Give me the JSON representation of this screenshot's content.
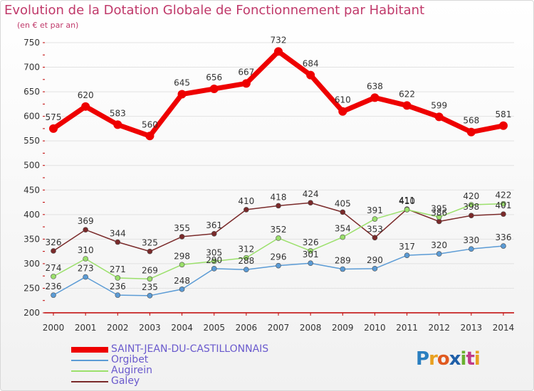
{
  "header": {
    "title": "Evolution de la Dotation Globale de Fonctionnement par Habitant",
    "subtitle": "(en € et par an)"
  },
  "logo": {
    "text": "Proxiti"
  },
  "colors": {
    "title": "#c0396a",
    "axis": "#c00000",
    "legend_text": "#6a5acd"
  },
  "chart_data": {
    "type": "line",
    "x": [
      "2000",
      "2001",
      "2002",
      "2003",
      "2004",
      "2005",
      "2006",
      "2007",
      "2008",
      "2009",
      "2010",
      "2011",
      "2012",
      "2013",
      "2014"
    ],
    "ylim": [
      200,
      750
    ],
    "yticks": [
      200,
      250,
      300,
      350,
      400,
      450,
      500,
      550,
      600,
      650,
      700,
      750
    ],
    "grid": true,
    "legend_position": "bottom-left",
    "series": [
      {
        "name": "SAINT-JEAN-DU-CASTILLONNAIS",
        "color": "#ee0000",
        "values": [
          575,
          620,
          583,
          560,
          645,
          656,
          667,
          732,
          684,
          610,
          638,
          622,
          599,
          568,
          581
        ]
      },
      {
        "name": "Orgibet",
        "color": "#5b9bd5",
        "values": [
          236,
          273,
          236,
          235,
          248,
          290,
          288,
          296,
          301,
          289,
          290,
          317,
          320,
          330,
          336
        ]
      },
      {
        "name": "Augirein",
        "color": "#9be06b",
        "values": [
          274,
          310,
          271,
          269,
          298,
          305,
          312,
          352,
          326,
          354,
          391,
          410,
          395,
          420,
          422
        ]
      },
      {
        "name": "Galey",
        "color": "#7a2a2a",
        "values": [
          326,
          369,
          344,
          325,
          355,
          361,
          410,
          418,
          424,
          405,
          353,
          411,
          386,
          398,
          401
        ]
      }
    ]
  }
}
